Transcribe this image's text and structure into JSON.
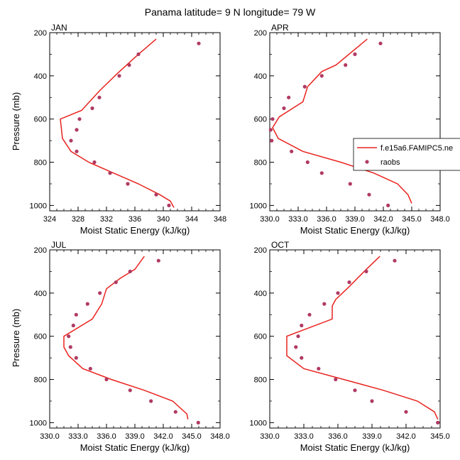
{
  "figure": {
    "title": "Panama  latitude= 9 N longitude= 79 W"
  },
  "legend": {
    "model": "f.e15a6.FAMIPC5.ne",
    "obs": "raobs"
  },
  "colors": {
    "model": "#e8241f",
    "obs": "#b03a63",
    "axis": "#000000"
  },
  "chart_data": [
    {
      "type": "line",
      "panel": "JAN",
      "title": "JAN",
      "xlabel": "Moist Static Energy (kJ/kg)",
      "ylabel": "Pressure (mb)",
      "xlim": [
        324,
        348
      ],
      "ylim": [
        1025,
        200
      ],
      "xticks": [
        324,
        328,
        332,
        336,
        340,
        344,
        348
      ],
      "xtick_labels": [
        "324",
        "328",
        "332",
        "336",
        "340",
        "344",
        "348"
      ],
      "yticks": [
        200,
        400,
        600,
        800,
        1000
      ],
      "series": [
        {
          "name": "f.e15a6.FAMIPC5.ne",
          "style": "line",
          "x": [
            339.0,
            336.5,
            333.5,
            331.0,
            328.5,
            325.5,
            325.8,
            327.0,
            329.5,
            333.0,
            336.5,
            339.5,
            341.0,
            341.5
          ],
          "y": [
            230,
            300,
            390,
            470,
            560,
            600,
            690,
            750,
            800,
            850,
            900,
            950,
            980,
            1010
          ]
        },
        {
          "name": "raobs",
          "style": "markers",
          "x": [
            345.0,
            336.5,
            335.2,
            333.8,
            331.0,
            330.0,
            328.2,
            327.8,
            327.0,
            327.8,
            330.3,
            332.5,
            335.0,
            339.0,
            340.8
          ],
          "y": [
            250,
            300,
            350,
            400,
            500,
            550,
            600,
            650,
            700,
            750,
            800,
            850,
            900,
            950,
            1000
          ]
        }
      ]
    },
    {
      "type": "line",
      "panel": "APR",
      "title": "APR",
      "xlabel": "Moist Static Energy (kJ/kg)",
      "ylabel": "",
      "xlim": [
        330,
        348
      ],
      "ylim": [
        1025,
        200
      ],
      "xticks": [
        330,
        333,
        336,
        339,
        342,
        345,
        348
      ],
      "xtick_labels": [
        "330.0",
        "333.0",
        "336.0",
        "339.0",
        "342.0",
        "345.0",
        "348.0"
      ],
      "yticks": [
        200,
        400,
        600,
        800,
        1000
      ],
      "series": [
        {
          "name": "f.e15a6.FAMIPC5.ne",
          "style": "line",
          "x": [
            340.3,
            337.0,
            335.5,
            334.0,
            333.5,
            331.0,
            330.3,
            330.9,
            333.5,
            337.5,
            341.0,
            343.5,
            344.6,
            345.0
          ],
          "y": [
            230,
            350,
            380,
            450,
            520,
            590,
            640,
            690,
            750,
            800,
            850,
            900,
            950,
            990
          ]
        },
        {
          "name": "raobs",
          "style": "markers",
          "x": [
            341.7,
            339.0,
            338.0,
            335.5,
            333.7,
            332.0,
            331.5,
            330.3,
            330.1,
            330.2,
            332.3,
            334.0,
            335.5,
            338.5,
            340.5,
            342.5
          ],
          "y": [
            250,
            300,
            350,
            400,
            450,
            500,
            550,
            600,
            650,
            700,
            750,
            800,
            850,
            900,
            950,
            1000
          ]
        }
      ]
    },
    {
      "type": "line",
      "panel": "JUL",
      "title": "JUL",
      "xlabel": "Moist Static Energy (kJ/kg)",
      "ylabel": "Pressure (mb)",
      "xlim": [
        330,
        348
      ],
      "ylim": [
        1025,
        200
      ],
      "xticks": [
        330,
        333,
        336,
        339,
        342,
        345,
        348
      ],
      "xtick_labels": [
        "330.0",
        "333.0",
        "336.0",
        "339.0",
        "342.0",
        "345.0",
        "348.0"
      ],
      "yticks": [
        200,
        400,
        600,
        800,
        1000
      ],
      "series": [
        {
          "name": "f.e15a6.FAMIPC5.ne",
          "style": "line",
          "x": [
            340.0,
            339.0,
            337.5,
            336.0,
            335.5,
            334.5,
            331.5,
            331.5,
            332.0,
            333.5,
            336.5,
            340.0,
            343.0,
            344.5,
            344.6
          ],
          "y": [
            230,
            290,
            330,
            380,
            450,
            520,
            600,
            650,
            690,
            750,
            800,
            850,
            900,
            960,
            985
          ]
        },
        {
          "name": "raobs",
          "style": "markers",
          "x": [
            341.5,
            338.5,
            337.0,
            335.3,
            334.0,
            332.8,
            332.5,
            332.0,
            332.2,
            332.8,
            334.3,
            336.0,
            338.5,
            340.7,
            343.3,
            345.7
          ],
          "y": [
            250,
            300,
            350,
            400,
            450,
            500,
            550,
            600,
            650,
            700,
            750,
            800,
            850,
            900,
            950,
            1000
          ]
        }
      ]
    },
    {
      "type": "line",
      "panel": "OCT",
      "title": "OCT",
      "xlabel": "Moist Static Energy (kJ/kg)",
      "ylabel": "",
      "xlim": [
        330,
        345
      ],
      "ylim": [
        1025,
        200
      ],
      "xticks": [
        330,
        333,
        336,
        339,
        342,
        345
      ],
      "xtick_labels": [
        "330.0",
        "333.0",
        "336.0",
        "339.0",
        "342.0",
        "345.0"
      ],
      "yticks": [
        200,
        400,
        600,
        800,
        1000
      ],
      "series": [
        {
          "name": "f.e15a6.FAMIPC5.ne",
          "style": "line",
          "x": [
            339.7,
            338.5,
            337.0,
            335.8,
            335.5,
            335.5,
            331.5,
            331.5,
            333.0,
            336.5,
            340.0,
            343.0,
            344.5,
            344.8
          ],
          "y": [
            230,
            290,
            370,
            430,
            460,
            520,
            600,
            690,
            750,
            800,
            850,
            900,
            950,
            985
          ]
        },
        {
          "name": "raobs",
          "style": "markers",
          "x": [
            341.0,
            338.5,
            337.0,
            336.0,
            334.8,
            333.5,
            332.8,
            332.5,
            332.3,
            332.8,
            334.3,
            335.8,
            337.5,
            339.0,
            342.0,
            344.8
          ],
          "y": [
            250,
            300,
            350,
            400,
            450,
            500,
            550,
            600,
            650,
            700,
            750,
            800,
            850,
            900,
            950,
            1000
          ]
        }
      ]
    }
  ]
}
